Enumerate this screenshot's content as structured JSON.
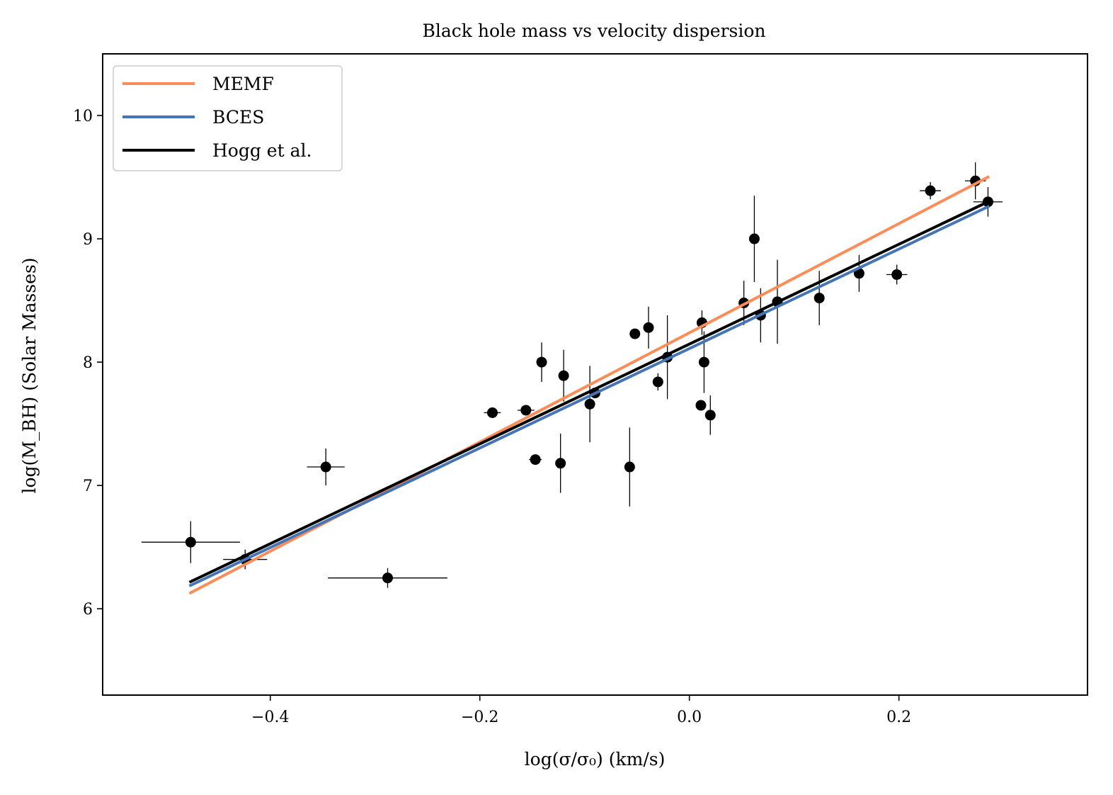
{
  "chart_data": {
    "type": "scatter",
    "title": "Black hole mass vs velocity dispersion",
    "xlabel": "log(σ/σ₀) (km/s)",
    "ylabel": "log(M_BH) (Solar Masses)",
    "xlim": [
      -0.56,
      0.38
    ],
    "ylim": [
      5.3,
      10.5
    ],
    "x_ticks": [
      -0.4,
      -0.2,
      0.0,
      0.2
    ],
    "x_tick_labels": [
      "−0.4",
      "−0.2",
      "0.0",
      "0.2"
    ],
    "y_ticks": [
      6,
      7,
      8,
      9,
      10
    ],
    "y_tick_labels": [
      "6",
      "7",
      "8",
      "9",
      "10"
    ],
    "grid": false,
    "legend_position": "top-left",
    "lines": [
      {
        "name": "MEMF",
        "color": "#fc8d59",
        "x": [
          -0.476,
          0.285
        ],
        "y": [
          6.13,
          9.5
        ]
      },
      {
        "name": "BCES",
        "color": "#4575b4",
        "x": [
          -0.476,
          0.285
        ],
        "y": [
          6.19,
          9.26
        ]
      },
      {
        "name": "Hogg et al.",
        "color": "#000000",
        "x": [
          -0.476,
          0.285
        ],
        "y": [
          6.22,
          9.3
        ]
      }
    ],
    "points": [
      {
        "x": -0.476,
        "y": 6.54,
        "xerr": 0.047,
        "yerr": 0.17
      },
      {
        "x": -0.424,
        "y": 6.4,
        "xerr": 0.021,
        "yerr": 0.08
      },
      {
        "x": -0.347,
        "y": 7.15,
        "xerr": 0.018,
        "yerr": 0.15
      },
      {
        "x": -0.288,
        "y": 6.25,
        "xerr": 0.057,
        "yerr": 0.08
      },
      {
        "x": -0.188,
        "y": 7.59,
        "xerr": 0.008,
        "yerr": 0.03
      },
      {
        "x": -0.156,
        "y": 7.61,
        "xerr": 0.008,
        "yerr": 0.03
      },
      {
        "x": -0.147,
        "y": 7.21,
        "xerr": 0.006,
        "yerr": 0.03
      },
      {
        "x": -0.141,
        "y": 8.0,
        "xerr": 0.005,
        "yerr": 0.16
      },
      {
        "x": -0.12,
        "y": 7.89,
        "xerr": 0.0,
        "yerr": 0.21
      },
      {
        "x": -0.123,
        "y": 7.18,
        "xerr": 0.0,
        "yerr": 0.24
      },
      {
        "x": -0.095,
        "y": 7.66,
        "xerr": 0.0,
        "yerr": 0.31
      },
      {
        "x": -0.09,
        "y": 7.75,
        "xerr": 0.004,
        "yerr": 0.03
      },
      {
        "x": -0.057,
        "y": 7.15,
        "xerr": 0.0,
        "yerr": 0.32
      },
      {
        "x": -0.052,
        "y": 8.23,
        "xerr": 0.004,
        "yerr": 0.03
      },
      {
        "x": -0.039,
        "y": 8.28,
        "xerr": 0.0,
        "yerr": 0.17
      },
      {
        "x": -0.03,
        "y": 7.84,
        "xerr": 0.004,
        "yerr": 0.07
      },
      {
        "x": -0.021,
        "y": 8.04,
        "xerr": 0.0,
        "yerr": 0.34
      },
      {
        "x": 0.012,
        "y": 8.32,
        "xerr": 0.003,
        "yerr": 0.1
      },
      {
        "x": 0.011,
        "y": 7.65,
        "xerr": 0.0,
        "yerr": 0.03
      },
      {
        "x": 0.014,
        "y": 8.0,
        "xerr": 0.0,
        "yerr": 0.25
      },
      {
        "x": 0.02,
        "y": 7.57,
        "xerr": 0.0,
        "yerr": 0.16
      },
      {
        "x": 0.052,
        "y": 8.48,
        "xerr": 0.0,
        "yerr": 0.18
      },
      {
        "x": 0.062,
        "y": 9.0,
        "xerr": 0.0,
        "yerr": 0.35
      },
      {
        "x": 0.068,
        "y": 8.38,
        "xerr": 0.0,
        "yerr": 0.22
      },
      {
        "x": 0.084,
        "y": 8.49,
        "xerr": 0.0,
        "yerr": 0.34
      },
      {
        "x": 0.124,
        "y": 8.52,
        "xerr": 0.0,
        "yerr": 0.22
      },
      {
        "x": 0.162,
        "y": 8.72,
        "xerr": 0.0,
        "yerr": 0.15
      },
      {
        "x": 0.198,
        "y": 8.71,
        "xerr": 0.01,
        "yerr": 0.08
      },
      {
        "x": 0.23,
        "y": 9.39,
        "xerr": 0.01,
        "yerr": 0.07
      },
      {
        "x": 0.273,
        "y": 9.47,
        "xerr": 0.01,
        "yerr": 0.15
      },
      {
        "x": 0.285,
        "y": 9.3,
        "xerr": 0.014,
        "yerr": 0.12
      }
    ]
  }
}
